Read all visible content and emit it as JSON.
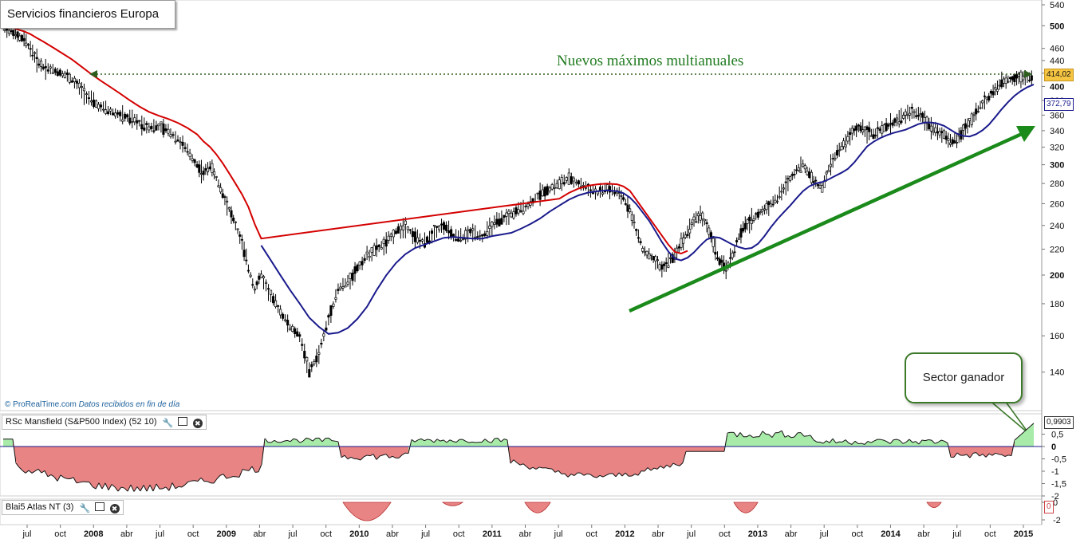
{
  "header": {
    "title": "Servicios financieros Europa",
    "credit_brand": "© ProRealTime.com",
    "credit_note": "Datos recibidos en fin de día"
  },
  "annotations": {
    "new_highs": "Nuevos máximos multianuales",
    "bubble": "Sector ganador"
  },
  "price_tags": {
    "last": "414,02",
    "ma": "372,79",
    "rsc": "0,9903",
    "atlas": "0"
  },
  "indicators": {
    "rsc_label": "RSc Mansfield (S&P500 Index) (52 10)",
    "atlas_label": "Blai5 Atlas NT (3)",
    "wrench": "wrench-icon",
    "window": "window-icon",
    "close": "close-icon"
  },
  "colors": {
    "price": "#000000",
    "ma_red": "#d40000",
    "ma_blue": "#1a1a8c",
    "trend": "#1a8a1a",
    "positive_fill": "#a8eba8",
    "negative_fill": "#e88484",
    "last_tag_bg": "#f5c542"
  },
  "chart_data": [
    {
      "type": "line",
      "title": "Servicios financieros Europa",
      "x_ticks": [
        "jul",
        "oct",
        "2008",
        "abr",
        "jul",
        "oct",
        "2009",
        "abr",
        "jul",
        "oct",
        "2010",
        "abr",
        "jul",
        "oct",
        "2011",
        "abr",
        "jul",
        "oct",
        "2012",
        "abr",
        "jul",
        "oct",
        "2013",
        "abr",
        "jul",
        "oct",
        "2014",
        "abr",
        "jul",
        "oct",
        "2015"
      ],
      "y_ticks": [
        540,
        500,
        460,
        440,
        420,
        400,
        380,
        360,
        340,
        320,
        300,
        280,
        260,
        240,
        220,
        200,
        180,
        160,
        140
      ],
      "ylim": [
        120,
        545
      ],
      "y_scale": "log",
      "series": [
        {
          "x": [
            0,
            2,
            4,
            6,
            8,
            10,
            12,
            15,
            18,
            21,
            24,
            27,
            30,
            33,
            36,
            39,
            42,
            45,
            48,
            51,
            54,
            57,
            60,
            62,
            64,
            66,
            68,
            70,
            72,
            74,
            76,
            78,
            80,
            83,
            86,
            89,
            92,
            95,
            98,
            101,
            104,
            107,
            110,
            113,
            116,
            119,
            122,
            125,
            128,
            131,
            134,
            137,
            140,
            143,
            146,
            149,
            152,
            155,
            158,
            161,
            164,
            167,
            170,
            173,
            176,
            179,
            182,
            185,
            188,
            191,
            193,
            195,
            197,
            199,
            201,
            203,
            205,
            207,
            209,
            211,
            213,
            215,
            217,
            219,
            221,
            223,
            225,
            227,
            229,
            231,
            233,
            235,
            237,
            239,
            241,
            243,
            245,
            247,
            249,
            251,
            253,
            255,
            257,
            259,
            261,
            263,
            265,
            267,
            269,
            271,
            273,
            275,
            277,
            279,
            281,
            283,
            285,
            287,
            289,
            291,
            293,
            295,
            297,
            299,
            301,
            303,
            305,
            307,
            309,
            311,
            313,
            315,
            317,
            319,
            321
          ],
          "values": [
            495,
            490,
            480,
            475,
            460,
            440,
            430,
            425,
            420,
            410,
            395,
            380,
            370,
            365,
            360,
            355,
            350,
            345,
            345,
            340,
            330,
            315,
            300,
            290,
            300,
            285,
            270,
            255,
            240,
            225,
            205,
            190,
            200,
            185,
            175,
            165,
            160,
            140,
            150,
            170,
            190,
            195,
            205,
            215,
            220,
            225,
            235,
            240,
            230,
            225,
            235,
            240,
            230,
            230,
            235,
            230,
            240,
            245,
            250,
            255,
            260,
            270,
            275,
            280,
            285,
            280,
            275,
            270,
            275,
            270,
            265,
            255,
            235,
            220,
            215,
            210,
            205,
            210,
            215,
            225,
            235,
            245,
            250,
            240,
            225,
            210,
            205,
            215,
            230,
            240,
            245,
            250,
            255,
            260,
            265,
            275,
            285,
            295,
            300,
            290,
            280,
            275,
            295,
            310,
            320,
            330,
            340,
            345,
            340,
            335,
            340,
            345,
            350,
            355,
            360,
            365,
            360,
            355,
            345,
            340,
            335,
            325,
            330,
            340,
            350,
            365,
            375,
            385,
            395,
            405,
            410,
            412,
            414,
            414,
            414
          ],
          "name": ""
        },
        {
          "name": "",
          "values_note": ""
        }
      ]
    },
    {
      "type": "area",
      "title": "RSc Mansfield (S&P500 Index) (52 10)",
      "y_ticks": [
        "0,5",
        "0",
        "-0,5",
        "-1",
        "-1,5",
        "-2"
      ],
      "ylim": [
        -2.1,
        0.95
      ]
    },
    {
      "type": "area",
      "title": "Blai5 Atlas NT (3)",
      "y_ticks": [
        "0",
        "-2"
      ],
      "ylim": [
        -2.2,
        0.3
      ]
    }
  ]
}
